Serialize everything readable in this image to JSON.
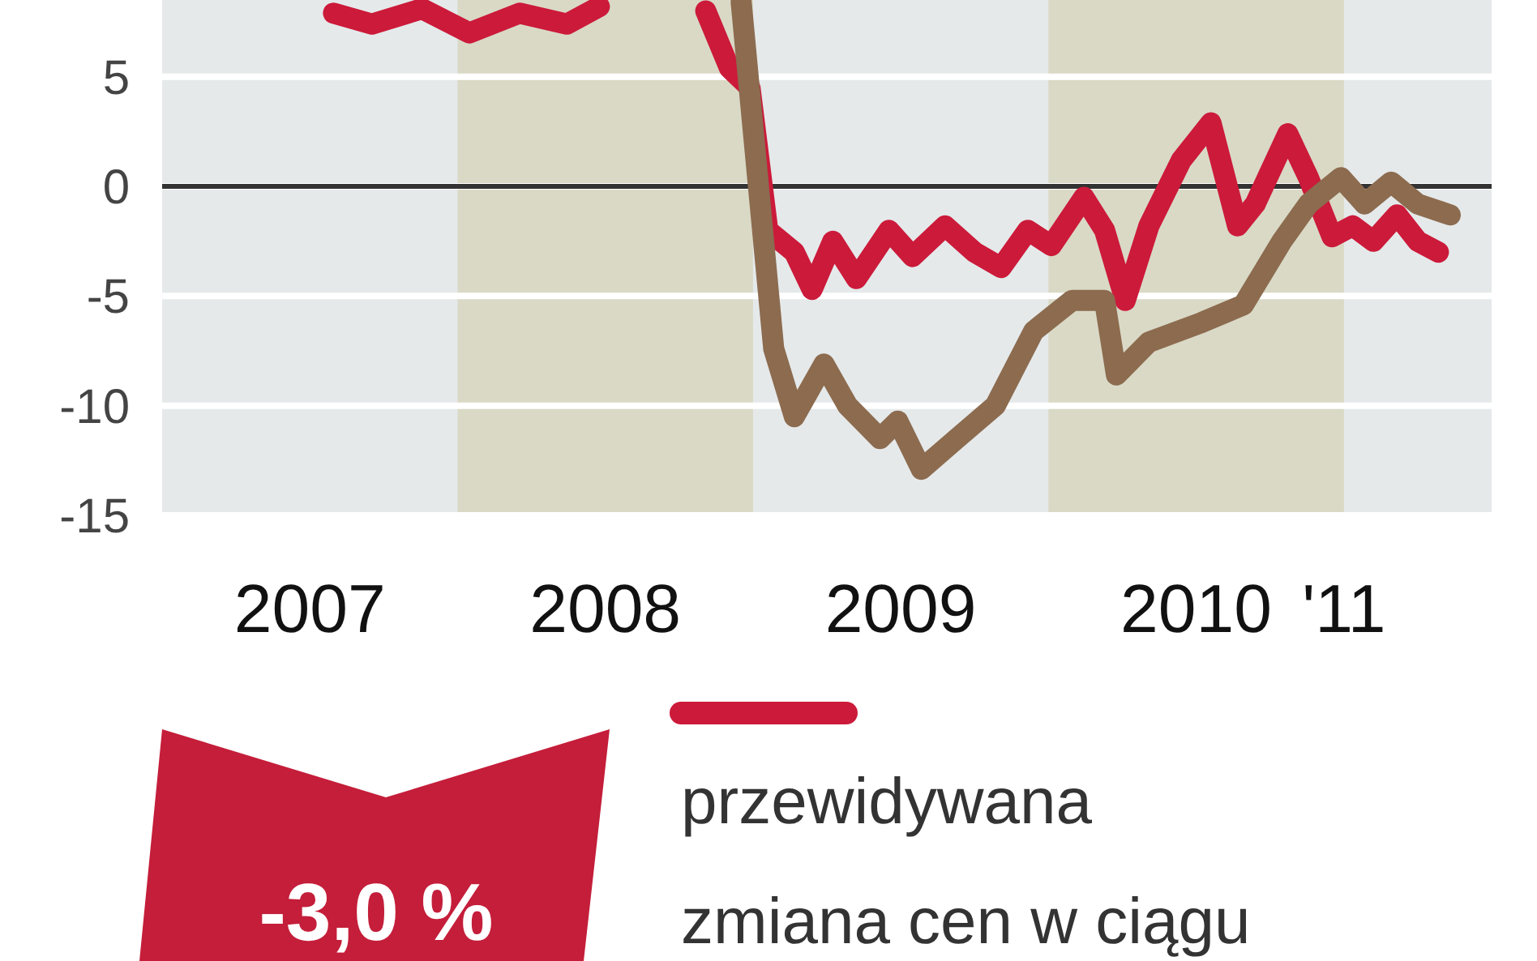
{
  "chart_data": {
    "type": "line",
    "xlim": [
      2007,
      2011.5
    ],
    "ylim": [
      -15,
      8.5
    ],
    "xticks": [
      {
        "value": 2007.5,
        "label": "2007"
      },
      {
        "value": 2008.5,
        "label": "2008"
      },
      {
        "value": 2009.5,
        "label": "2009"
      },
      {
        "value": 2010.5,
        "label": "2010"
      },
      {
        "value": 2011,
        "label": "'11"
      }
    ],
    "yticks": [
      5,
      0,
      -5,
      -10,
      -15
    ],
    "grid": "y",
    "legend": "bottom",
    "line_style": "solid",
    "marker": "none",
    "ref_lines": [
      {
        "axis": "y",
        "value": 0,
        "color": "#333333"
      }
    ],
    "bands": [
      {
        "axis": "x",
        "from": 2008,
        "to": 2009,
        "color": "#d9d9c6"
      },
      {
        "axis": "x",
        "from": 2010,
        "to": 2011,
        "color": "#d9d9c6"
      }
    ],
    "annotations": [
      "-3,0 %"
    ],
    "series": [
      {
        "name": "przewidywana zmiana cen w ciągu",
        "color": "#cc1a3a",
        "x": [
          2007.58,
          2007.71,
          2007.88,
          2008.04,
          2008.21,
          2008.37,
          2008.48,
          2008.6,
          2008.84,
          2008.92,
          2008.99,
          2009.05,
          2009.14,
          2009.2,
          2009.27,
          2009.35,
          2009.46,
          2009.54,
          2009.65,
          2009.75,
          2009.84,
          2009.93,
          2010.01,
          2010.12,
          2010.19,
          2010.26,
          2010.34,
          2010.45,
          2010.55,
          2010.64,
          2010.7,
          2010.81,
          2010.88,
          2010.96,
          2011.03,
          2011.1,
          2011.18,
          2011.25,
          2011.32
        ],
        "values": [
          7.9,
          7.4,
          8.1,
          7.0,
          7.9,
          7.4,
          8.2,
          null,
          8.0,
          5.4,
          4.5,
          -2,
          -3,
          -4.7,
          -2.5,
          -4.2,
          -2,
          -3.2,
          -1.8,
          -3,
          -3.7,
          -2,
          -2.7,
          -0.5,
          -2,
          -5.2,
          -1.8,
          1.2,
          2.9,
          -1.8,
          -0.8,
          2.4,
          0.4,
          -2.3,
          -1.8,
          -2.5,
          -1.3,
          -2.5,
          -3
        ]
      },
      {
        "color": "#8c6b4f",
        "x": [
          2008.96,
          2009.07,
          2009.14,
          2009.24,
          2009.32,
          2009.43,
          2009.49,
          2009.57,
          2009.69,
          2009.82,
          2009.95,
          2010.08,
          2010.19,
          2010.23,
          2010.34,
          2010.52,
          2010.66,
          2010.79,
          2010.88,
          2010.99,
          2011.07,
          2011.16,
          2011.25,
          2011.36
        ],
        "values": [
          8.4,
          -7.4,
          -10.5,
          -8.1,
          -10,
          -11.5,
          -10.7,
          -12.9,
          -11.5,
          -10,
          -6.6,
          -5.2,
          -5.2,
          -8.6,
          -7.1,
          -6.2,
          -5.4,
          -2.5,
          -0.8,
          0.4,
          -0.8,
          0.2,
          -0.8,
          -1.3
        ]
      }
    ]
  }
}
